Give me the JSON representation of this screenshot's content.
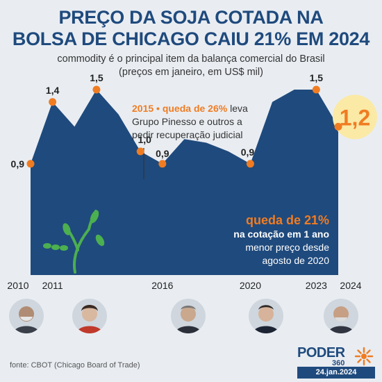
{
  "title_line1": "PREÇO DA SOJA COTADA NA",
  "title_line2": "BOLSA DE CHICAGO CAIU 21% EM 2024",
  "subtitle_line1": "commodity é o principal item da balança comercial do Brasil",
  "subtitle_line2": "(preços em janeiro, em US$ mil)",
  "annotation": {
    "highlight": "2015 • queda de 26%",
    "rest1": " leva",
    "line2": "Grupo Pinesso e outros a",
    "line3": "pedir recuperação judicial"
  },
  "callout": {
    "big": "queda de 21%",
    "bold": "na cotação em 1 ano",
    "line3": "menor preço desde",
    "line4": "agosto de 2020"
  },
  "source": "fonte: CBOT (Chicago Board of Trade)",
  "logo": {
    "main": "PODER",
    "sub": "360",
    "date": "24.jan.2024"
  },
  "colors": {
    "area": "#1f4a7d",
    "accent": "#f07c22",
    "highlight_circle": "#fbe9a6",
    "sprout": "#4caf50"
  },
  "presidents": [
    "president-portrait-1",
    "president-portrait-2",
    "president-portrait-3",
    "president-portrait-4",
    "president-portrait-5"
  ],
  "chart_data": {
    "type": "area",
    "x": [
      2010,
      2011,
      2012,
      2013,
      2014,
      2015,
      2016,
      2017,
      2018,
      2019,
      2020,
      2021,
      2022,
      2023,
      2024
    ],
    "values": [
      0.9,
      1.4,
      1.2,
      1.5,
      1.3,
      1.0,
      0.9,
      1.1,
      1.07,
      1.0,
      0.9,
      1.4,
      1.5,
      1.5,
      1.2
    ],
    "labeled_points": [
      {
        "x": 2010,
        "label": "0,9"
      },
      {
        "x": 2011,
        "label": "1,4"
      },
      {
        "x": 2013,
        "label": "1,5"
      },
      {
        "x": 2015,
        "label": "1,0"
      },
      {
        "x": 2016,
        "label": "0,9"
      },
      {
        "x": 2020,
        "label": "0,9"
      },
      {
        "x": 2023,
        "label": "1,5"
      },
      {
        "x": 2024,
        "label": "1,2",
        "emphasis": true
      }
    ],
    "x_tick_labels": [
      "2010",
      "2011",
      "2016",
      "2020",
      "2023",
      "2024"
    ],
    "ylim": [
      0,
      1.7
    ],
    "grid": false
  }
}
